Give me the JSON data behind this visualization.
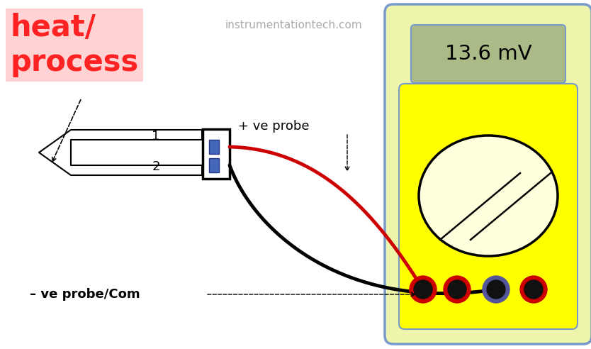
{
  "title": "instrumentationtech.com",
  "display_reading": "13.6 mV",
  "heat_process_text": "heat/\nprocess",
  "label_1": "1",
  "label_2": "2",
  "plus_probe_label": "+ ve probe",
  "minus_probe_label": "– ve probe/Com",
  "bg_color": "#ffffff",
  "title_color": "#aaaaaa",
  "heat_text_color": "#ff2222",
  "heat_bg_color": "#ffcccc",
  "mm_outer_color": "#eef5aa",
  "mm_outer_border": "#7799cc",
  "mm_inner_color": "#ffff00",
  "mm_inner_border": "#7799cc",
  "display_bg_color": "#aabb88",
  "display_border": "#7799cc",
  "wire_red": "#cc0000",
  "wire_black": "#000000",
  "connector_blue": "#4466bb",
  "jack_red_ring": "#cc0000",
  "jack_black_ring": "#555599",
  "jack_center": "#111111"
}
